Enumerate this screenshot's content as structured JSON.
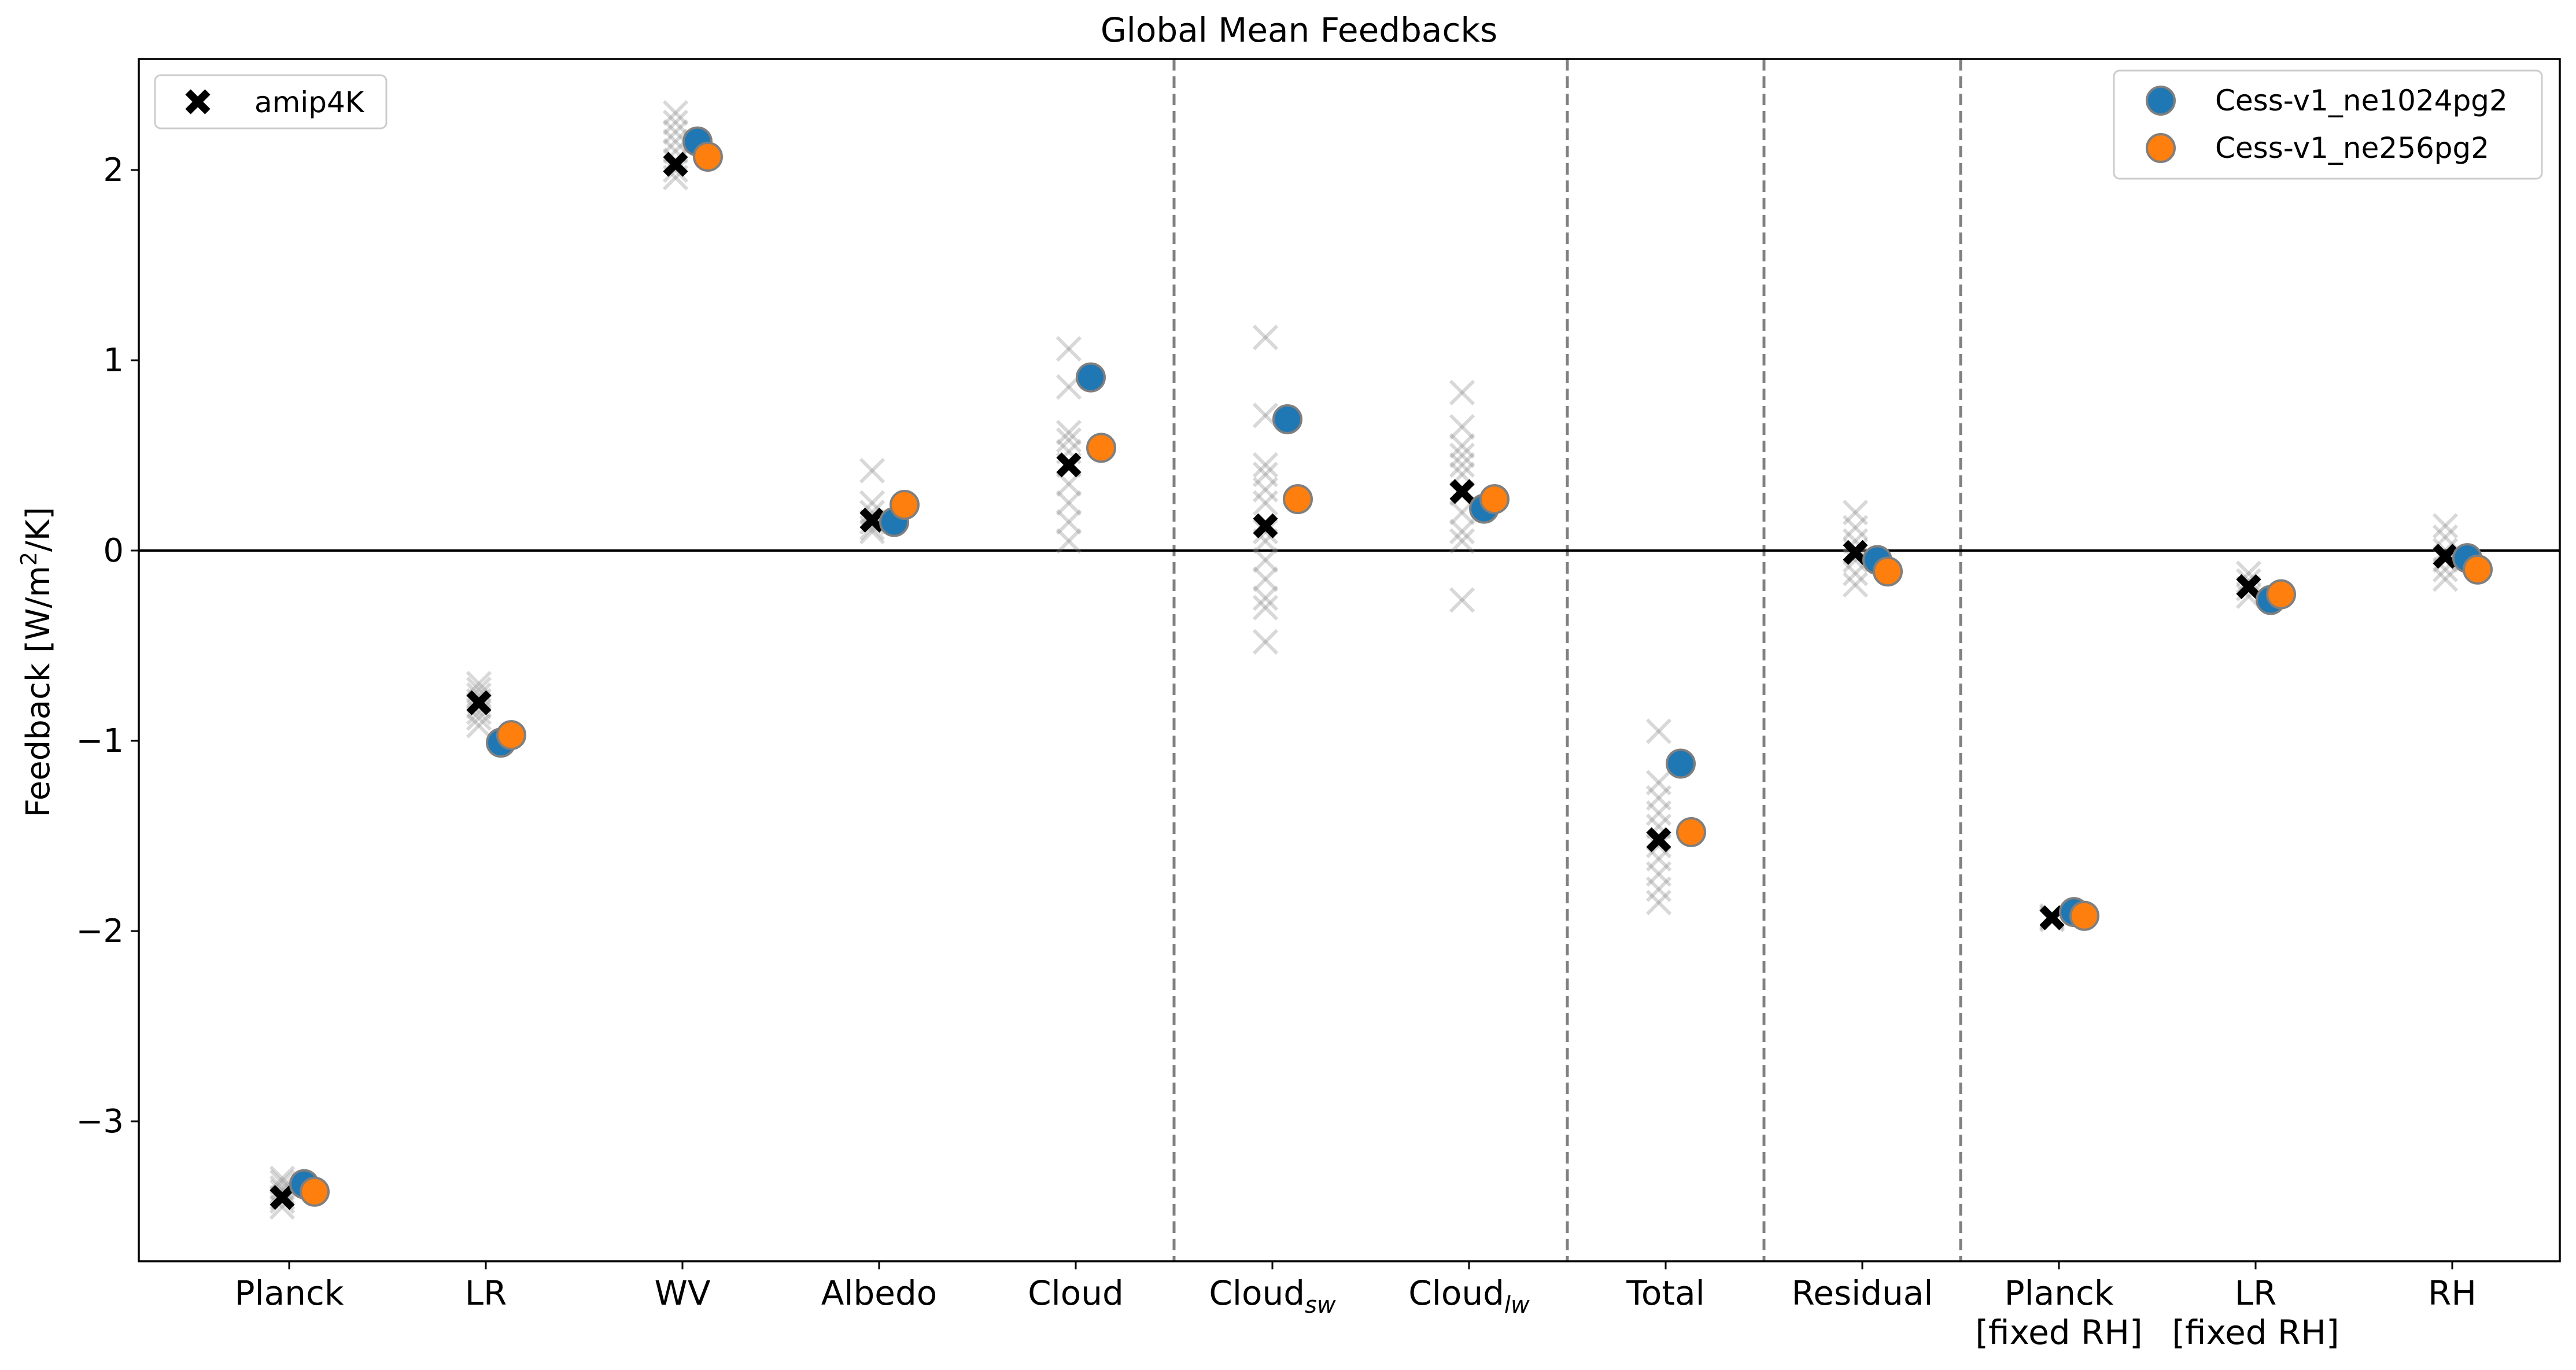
{
  "chart_data": {
    "type": "scatter",
    "title": "Global Mean Feedbacks",
    "ylabel_main": "Feedback [W/m",
    "ylabel_sup": "2",
    "ylabel_tail": "/K]",
    "ylim": [
      -3.75,
      2.6
    ],
    "yticks": [
      2,
      1,
      0,
      -1,
      -2,
      -3
    ],
    "ytick_labels": [
      "2",
      "1",
      "0",
      "−1",
      "−2",
      "−3"
    ],
    "grid": false,
    "zero_line": true,
    "categories": [
      {
        "label": "Planck"
      },
      {
        "label": "LR"
      },
      {
        "label": "WV"
      },
      {
        "label": "Albedo"
      },
      {
        "label": "Cloud"
      },
      {
        "label": "Cloud",
        "sub": "sw"
      },
      {
        "label": "Cloud",
        "sub": "lw"
      },
      {
        "label": "Total"
      },
      {
        "label": "Residual"
      },
      {
        "label": "Planck",
        "line2": "[fixed RH]"
      },
      {
        "label": "LR",
        "line2": "[fixed RH]"
      },
      {
        "label": "RH"
      }
    ],
    "group_separators_after_index": [
      4,
      6,
      7,
      8
    ],
    "amip4K_models": [
      [
        -3.3,
        -3.32,
        -3.35,
        -3.37,
        -3.4,
        -3.42,
        -3.45
      ],
      [
        -0.7,
        -0.73,
        -0.76,
        -0.79,
        -0.82,
        -0.85,
        -0.88,
        -0.92
      ],
      [
        2.3,
        2.25,
        2.2,
        2.15,
        2.1,
        2.05,
        2.0,
        1.96
      ],
      [
        0.42,
        0.25,
        0.2,
        0.15,
        0.12,
        0.1
      ],
      [
        1.06,
        0.86,
        0.62,
        0.58,
        0.52,
        0.45,
        0.35,
        0.25,
        0.15,
        0.05
      ],
      [
        1.12,
        0.71,
        0.45,
        0.4,
        0.32,
        0.25,
        0.1,
        0.05,
        -0.05,
        -0.15,
        -0.25,
        -0.3,
        -0.48
      ],
      [
        0.83,
        0.65,
        0.55,
        0.5,
        0.45,
        0.4,
        0.3,
        0.2,
        0.1,
        0.05,
        -0.26
      ],
      [
        -0.95,
        -1.22,
        -1.3,
        -1.38,
        -1.45,
        -1.55,
        -1.62,
        -1.7,
        -1.78,
        -1.85
      ],
      [
        0.2,
        0.12,
        0.05,
        0.0,
        -0.05,
        -0.12,
        -0.18
      ],
      [
        -1.92,
        -1.93,
        -1.94
      ],
      [
        -0.12,
        -0.16,
        -0.2,
        -0.24
      ],
      [
        0.13,
        0.07,
        0.0,
        -0.05,
        -0.1,
        -0.15
      ]
    ],
    "series": [
      {
        "name": "amip4K",
        "marker": "x",
        "color": "#000000",
        "values": [
          -3.4,
          -0.8,
          2.03,
          0.16,
          0.45,
          0.13,
          0.31,
          -1.52,
          -0.01,
          -1.93,
          -0.19,
          -0.03
        ]
      },
      {
        "name": "Cess-v1_ne1024pg2",
        "marker": "o",
        "color": "#1f77b4",
        "values": [
          -3.33,
          -1.01,
          2.15,
          0.15,
          0.91,
          0.69,
          0.22,
          -1.12,
          -0.05,
          -1.9,
          -0.26,
          -0.04
        ]
      },
      {
        "name": "Cess-v1_ne256pg2",
        "marker": "o",
        "color": "#ff7f0e",
        "values": [
          -3.37,
          -0.97,
          2.07,
          0.24,
          0.54,
          0.27,
          0.27,
          -1.48,
          -0.11,
          -1.92,
          -0.23,
          -0.1
        ]
      }
    ],
    "legends": [
      {
        "position": "upper-left",
        "entries": [
          "amip4K"
        ]
      },
      {
        "position": "upper-right",
        "entries": [
          "Cess-v1_ne1024pg2",
          "Cess-v1_ne256pg2"
        ]
      }
    ]
  }
}
